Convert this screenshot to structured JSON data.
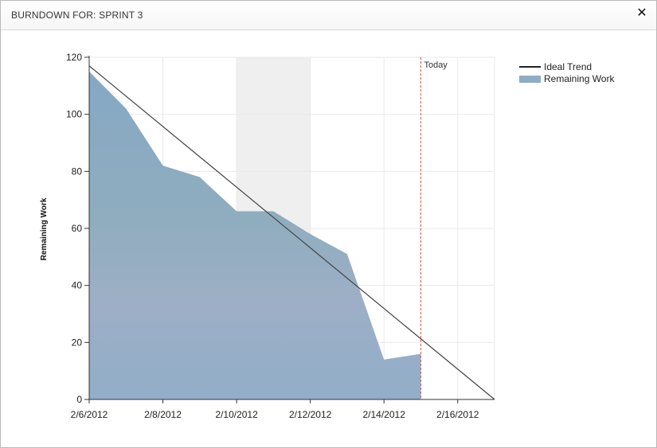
{
  "window": {
    "title": "BURNDOWN FOR: SPRINT 3",
    "close_icon": "close-icon"
  },
  "chart_data": {
    "type": "area",
    "xlabel": "",
    "ylabel": "Remaining Work",
    "ylim": [
      0,
      120
    ],
    "y_ticks": [
      0,
      20,
      40,
      60,
      80,
      100,
      120
    ],
    "x_ticks": [
      "2/6/2012",
      "2/8/2012",
      "2/10/2012",
      "2/12/2012",
      "2/14/2012",
      "2/16/2012"
    ],
    "grid": true,
    "legend_position": "top-right",
    "weekend_band": [
      "2/10/2012",
      "2/12/2012"
    ],
    "today_marker": {
      "label": "Today",
      "date": "2/15/2012",
      "color": "#e05050"
    },
    "series": [
      {
        "name": "Remaining Work",
        "kind": "area",
        "color": "#8fadc4",
        "points": [
          [
            "2/6/2012",
            115
          ],
          [
            "2/7/2012",
            102
          ],
          [
            "2/8/2012",
            82
          ],
          [
            "2/9/2012",
            78
          ],
          [
            "2/10/2012",
            66
          ],
          [
            "2/11/2012",
            66
          ],
          [
            "2/12/2012",
            58
          ],
          [
            "2/13/2012",
            51
          ],
          [
            "2/14/2012",
            14
          ],
          [
            "2/15/2012",
            16
          ]
        ]
      },
      {
        "name": "Ideal Trend",
        "kind": "line",
        "color": "#444444",
        "points": [
          [
            "2/6/2012",
            117
          ],
          [
            "2/17/2012",
            0
          ]
        ]
      }
    ]
  }
}
